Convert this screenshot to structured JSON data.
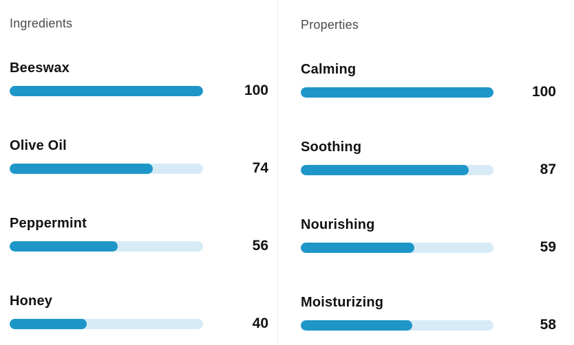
{
  "chart_data": [
    {
      "type": "bar",
      "orientation": "horizontal",
      "title": "Ingredients",
      "categories": [
        "Beeswax",
        "Olive Oil",
        "Peppermint",
        "Honey"
      ],
      "values": [
        100,
        74,
        56,
        40
      ],
      "xlim": [
        0,
        100
      ],
      "value_labels": "right",
      "grid": false,
      "legend": "none"
    },
    {
      "type": "bar",
      "orientation": "horizontal",
      "title": "Properties",
      "categories": [
        "Calming",
        "Soothing",
        "Nourishing",
        "Moisturizing"
      ],
      "values": [
        100,
        87,
        59,
        58
      ],
      "xlim": [
        0,
        100
      ],
      "value_labels": "right",
      "grid": false,
      "legend": "none"
    }
  ],
  "colors": {
    "bar_fill": "#1e96c8",
    "bar_track": "#d7ebf6",
    "header_text": "#4a4a4a",
    "label_text": "#121212",
    "divider": "#ededed",
    "background": "#ffffff"
  }
}
